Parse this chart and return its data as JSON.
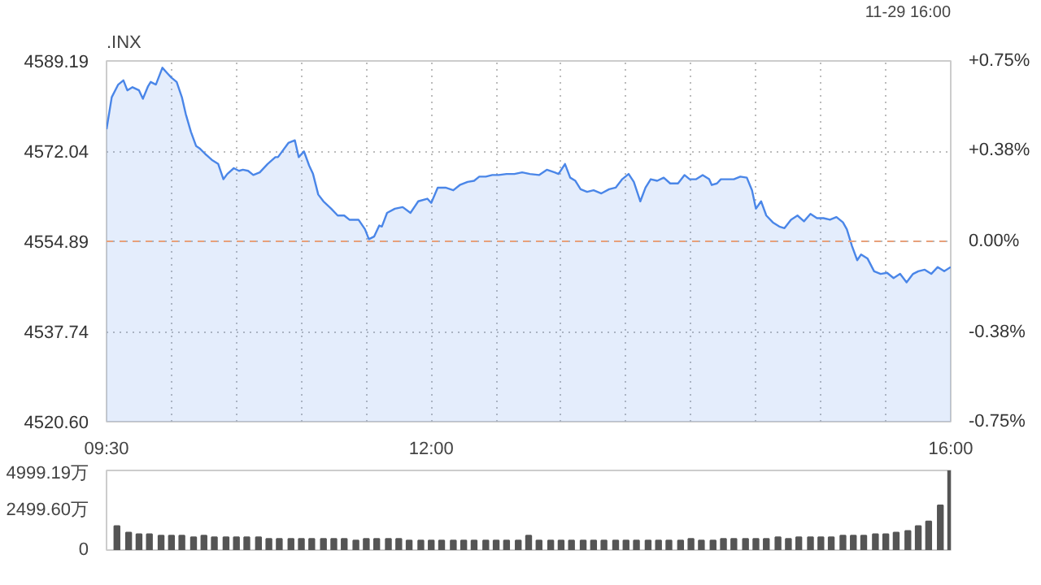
{
  "chart_data": [
    {
      "type": "area",
      "title": ".INX",
      "annotations": [
        "11-29 16:00"
      ],
      "x": [
        9.5,
        9.54,
        9.59,
        9.63,
        9.66,
        9.7,
        9.75,
        9.78,
        9.82,
        9.84,
        9.88,
        9.93,
        9.97,
        10.0,
        10.04,
        10.08,
        10.11,
        10.15,
        10.19,
        10.22,
        10.26,
        10.31,
        10.36,
        10.4,
        10.43,
        10.48,
        10.52,
        10.55,
        10.59,
        10.63,
        10.68,
        10.74,
        10.8,
        10.82,
        10.9,
        10.95,
        10.98,
        11.02,
        11.06,
        11.09,
        11.13,
        11.17,
        11.23,
        11.28,
        11.33,
        11.37,
        11.44,
        11.49,
        11.52,
        11.56,
        11.6,
        11.62,
        11.66,
        11.72,
        11.78,
        11.84,
        11.9,
        11.97,
        12.0,
        12.05,
        12.11,
        12.17,
        12.22,
        12.28,
        12.33,
        12.37,
        12.42,
        12.47,
        12.52,
        12.58,
        12.64,
        12.7,
        12.76,
        12.83,
        12.89,
        12.95,
        12.98,
        13.03,
        13.07,
        13.11,
        13.15,
        13.2,
        13.25,
        13.31,
        13.37,
        13.42,
        13.47,
        13.52,
        13.56,
        13.61,
        13.65,
        13.69,
        13.74,
        13.79,
        13.84,
        13.9,
        13.95,
        13.99,
        14.04,
        14.09,
        14.14,
        14.16,
        14.2,
        14.23,
        14.28,
        14.33,
        14.38,
        14.43,
        14.47,
        14.5,
        14.54,
        14.58,
        14.63,
        14.68,
        14.72,
        14.77,
        14.82,
        14.87,
        14.92,
        14.97,
        15.02,
        15.07,
        15.12,
        15.17,
        15.2,
        15.24,
        15.28,
        15.31,
        15.36,
        15.41,
        15.46,
        15.51,
        15.56,
        15.61,
        15.66,
        15.71,
        15.75,
        15.8,
        15.85,
        15.9,
        15.95,
        16.0
      ],
      "series": [
        {
          "color": "#4a86e8",
          "values": [
            4576.2,
            4582.3,
            4584.7,
            4585.5,
            4583.6,
            4584.2,
            4583.6,
            4582.0,
            4584.4,
            4585.2,
            4584.7,
            4587.9,
            4586.8,
            4586.0,
            4585.2,
            4582.3,
            4579.1,
            4575.7,
            4573.0,
            4572.5,
            4571.5,
            4570.4,
            4569.6,
            4566.7,
            4567.7,
            4568.8,
            4568.3,
            4568.5,
            4568.3,
            4567.5,
            4568.0,
            4569.6,
            4570.9,
            4570.9,
            4573.6,
            4574.1,
            4570.9,
            4572.0,
            4569.3,
            4567.7,
            4563.8,
            4562.5,
            4561.1,
            4559.8,
            4559.8,
            4559.0,
            4559.0,
            4557.2,
            4555.3,
            4555.8,
            4557.9,
            4557.7,
            4560.3,
            4561.1,
            4561.4,
            4560.3,
            4562.5,
            4563.0,
            4562.2,
            4565.1,
            4565.1,
            4564.6,
            4565.6,
            4566.2,
            4566.4,
            4567.2,
            4567.2,
            4567.5,
            4567.5,
            4567.7,
            4567.7,
            4568.0,
            4567.7,
            4567.5,
            4568.5,
            4568.0,
            4567.7,
            4569.6,
            4567.0,
            4566.4,
            4564.8,
            4564.3,
            4564.6,
            4564.0,
            4564.8,
            4565.1,
            4566.7,
            4567.7,
            4566.2,
            4562.5,
            4565.1,
            4566.7,
            4566.4,
            4567.0,
            4565.9,
            4565.9,
            4567.5,
            4566.7,
            4566.7,
            4567.5,
            4566.7,
            4565.6,
            4565.9,
            4566.7,
            4566.7,
            4566.7,
            4567.2,
            4567.0,
            4564.6,
            4561.1,
            4562.5,
            4559.8,
            4558.5,
            4557.7,
            4557.4,
            4559.0,
            4559.8,
            4558.7,
            4560.1,
            4559.3,
            4559.3,
            4559.0,
            4559.5,
            4558.5,
            4557.2,
            4554.0,
            4551.3,
            4552.4,
            4551.6,
            4549.2,
            4548.7,
            4548.9,
            4547.9,
            4548.7,
            4547.1,
            4548.7,
            4549.2,
            4549.5,
            4548.7,
            4550.0,
            4549.2,
            4550.0
          ]
        }
      ],
      "xlim": [
        9.5,
        16.0
      ],
      "xticks": [
        {
          "value": 9.5,
          "label": "09:30"
        },
        {
          "value": 10.0,
          "label": null
        },
        {
          "value": 10.5,
          "label": null
        },
        {
          "value": 11.0,
          "label": null
        },
        {
          "value": 11.5,
          "label": null
        },
        {
          "value": 12.0,
          "label": "12:00"
        },
        {
          "value": 12.5,
          "label": null
        },
        {
          "value": 13.0,
          "label": null
        },
        {
          "value": 13.5,
          "label": null
        },
        {
          "value": 14.0,
          "label": null
        },
        {
          "value": 14.5,
          "label": null
        },
        {
          "value": 15.0,
          "label": null
        },
        {
          "value": 15.5,
          "label": null
        },
        {
          "value": 16.0,
          "label": "16:00"
        }
      ],
      "ylim": [
        4520.6,
        4589.19
      ],
      "yticks": [
        {
          "value": 4520.6,
          "label": "4520.60"
        },
        {
          "value": 4537.74,
          "label": "4537.74"
        },
        {
          "value": 4554.89,
          "label": "4554.89"
        },
        {
          "value": 4572.04,
          "label": "4572.04"
        },
        {
          "value": 4589.19,
          "label": "4589.19"
        }
      ],
      "y2lim": [
        -0.75,
        0.75
      ],
      "y2ticks": [
        {
          "value": -0.75,
          "label": "-0.75%"
        },
        {
          "value": -0.38,
          "label": "-0.38%"
        },
        {
          "value": 0,
          "label": "0.00%"
        },
        {
          "value": 0.38,
          "label": "+0.38%"
        },
        {
          "value": 0.75,
          "label": "+0.75%"
        }
      ],
      "ref_lines": [
        {
          "axis": "y",
          "value": 4554.89,
          "color": "#e8a07a",
          "line_style": "dashed"
        }
      ],
      "grid": true
    },
    {
      "type": "bar",
      "tick_labels": "y",
      "x": [
        9.58,
        9.67,
        9.75,
        9.83,
        9.92,
        10.0,
        10.08,
        10.17,
        10.25,
        10.33,
        10.42,
        10.5,
        10.58,
        10.67,
        10.75,
        10.83,
        10.92,
        11.0,
        11.08,
        11.17,
        11.25,
        11.33,
        11.42,
        11.5,
        11.58,
        11.67,
        11.75,
        11.83,
        11.92,
        12.0,
        12.08,
        12.17,
        12.25,
        12.33,
        12.42,
        12.5,
        12.58,
        12.67,
        12.75,
        12.83,
        12.92,
        13.0,
        13.08,
        13.17,
        13.25,
        13.33,
        13.42,
        13.5,
        13.58,
        13.67,
        13.75,
        13.83,
        13.92,
        14.0,
        14.08,
        14.17,
        14.25,
        14.33,
        14.42,
        14.5,
        14.58,
        14.67,
        14.75,
        14.83,
        14.92,
        15.0,
        15.08,
        15.17,
        15.25,
        15.33,
        15.42,
        15.5,
        15.58,
        15.67,
        15.75,
        15.83,
        15.92,
        16.0
      ],
      "values": [
        1500,
        1100,
        1000,
        1000,
        900,
        900,
        900,
        800,
        900,
        800,
        800,
        800,
        800,
        800,
        700,
        700,
        700,
        700,
        700,
        700,
        700,
        700,
        600,
        700,
        700,
        700,
        700,
        600,
        600,
        600,
        600,
        600,
        600,
        600,
        600,
        600,
        600,
        600,
        900,
        600,
        600,
        600,
        600,
        600,
        600,
        600,
        600,
        600,
        600,
        600,
        600,
        600,
        600,
        700,
        600,
        600,
        700,
        700,
        700,
        700,
        700,
        800,
        700,
        800,
        800,
        800,
        800,
        900,
        900,
        900,
        1000,
        1000,
        1100,
        1200,
        1500,
        1800,
        2800,
        4999.19
      ],
      "color": "#555555",
      "xlim": [
        9.5,
        16.0
      ],
      "ylim": [
        0,
        4999.19
      ],
      "yticks": [
        0,
        {
          "value": 2499.6,
          "label": "2499.60万"
        },
        {
          "value": 4999.19,
          "label": "4999.19万"
        }
      ]
    }
  ]
}
